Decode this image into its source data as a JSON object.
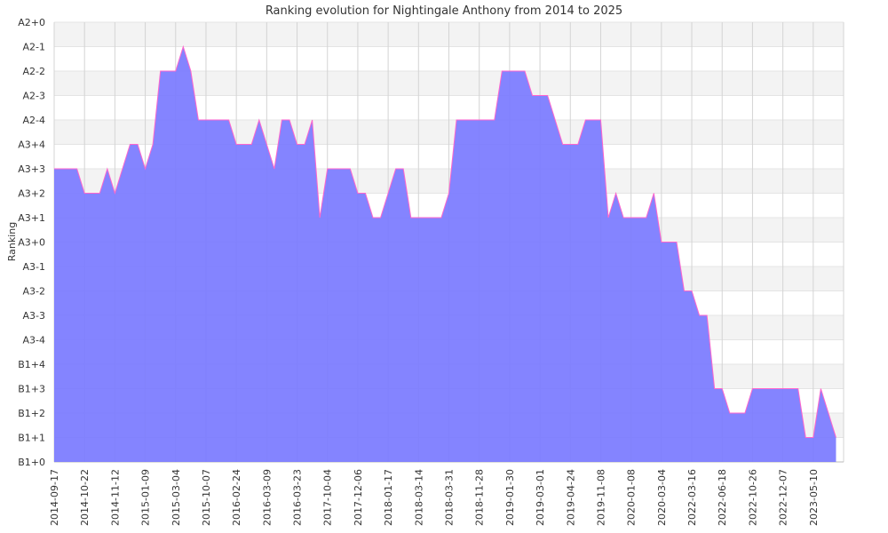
{
  "chart_data": {
    "type": "area",
    "title": "Ranking evolution for Nightingale Anthony from 2014 to 2025",
    "xlabel": "",
    "ylabel": "Ranking",
    "y_ticks": [
      "B1+0",
      "B1+1",
      "B1+2",
      "B1+3",
      "B1+4",
      "A3-4",
      "A3-3",
      "A3-2",
      "A3-1",
      "A3+0",
      "A3+1",
      "A3+2",
      "A3+3",
      "A3+4",
      "A2-4",
      "A2-3",
      "A2-2",
      "A2-1",
      "A2+0"
    ],
    "x_ticks": [
      "2014-09-17",
      "2014-10-22",
      "2014-11-12",
      "2015-01-09",
      "2015-03-04",
      "2015-10-07",
      "2016-02-24",
      "2016-03-09",
      "2016-03-23",
      "2017-10-04",
      "2017-12-06",
      "2018-01-17",
      "2018-03-14",
      "2018-03-31",
      "2018-11-28",
      "2019-01-30",
      "2019-03-01",
      "2019-04-24",
      "2019-11-08",
      "2020-01-08",
      "2020-03-04",
      "2022-03-16",
      "2022-06-18",
      "2022-10-26",
      "2022-12-07",
      "2023-05-10"
    ],
    "ylim": [
      0,
      18
    ],
    "grid": true,
    "colors": {
      "fill": "#7b7bff",
      "line": "#ff66cc",
      "band": "#f3f3f3",
      "grid": "#d4d4d4"
    },
    "series": [
      {
        "values": [
          12,
          12,
          12,
          12,
          11,
          11,
          11,
          12,
          11,
          12,
          13,
          13,
          12,
          13,
          16,
          16,
          16,
          17,
          16,
          14,
          14,
          14,
          14,
          14,
          13,
          13,
          13,
          14,
          13,
          12,
          14,
          14,
          13,
          13,
          14,
          10,
          12,
          12,
          12,
          12,
          11,
          11,
          10,
          10,
          11,
          12,
          12,
          10,
          10,
          10,
          10,
          10,
          11,
          14,
          14,
          14,
          14,
          14,
          14,
          16,
          16,
          16,
          16,
          15,
          15,
          15,
          14,
          13,
          13,
          13,
          14,
          14,
          14,
          10,
          11,
          10,
          10,
          10,
          10,
          11,
          9,
          9,
          9,
          7,
          7,
          6,
          6,
          3,
          3,
          2,
          2,
          2,
          3,
          3,
          3,
          3,
          3,
          3,
          3,
          1,
          1,
          3,
          2,
          1
        ]
      }
    ]
  }
}
